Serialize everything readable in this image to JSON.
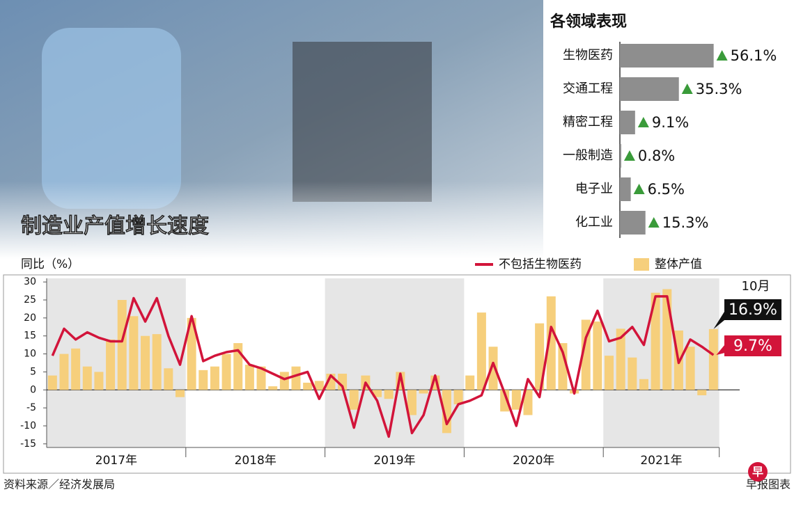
{
  "chart_data": [
    {
      "type": "hbar",
      "title": "各领域表现",
      "categories": [
        "生物医药",
        "交通工程",
        "精密工程",
        "一般制造",
        "电子业",
        "化工业"
      ],
      "values": [
        56.1,
        35.3,
        9.1,
        0.8,
        6.5,
        15.3
      ],
      "value_labels": [
        "56.1%",
        "35.3%",
        "9.1%",
        "0.8%",
        "6.5%",
        "15.3%"
      ],
      "color": "#8e8e8e",
      "xlim": [
        0,
        60
      ]
    },
    {
      "type": "combo",
      "title": "制造业产值增长速度",
      "ylabel": "同比（%）",
      "groups": [
        "2017年",
        "2018年",
        "2019年",
        "2020年",
        "2021年"
      ],
      "annotation": "10月",
      "ylim": [
        -16,
        31
      ],
      "yticks": [
        -15,
        -10,
        -5,
        0,
        5,
        10,
        15,
        20,
        25,
        30
      ],
      "series": [
        {
          "name": "不包括生物医药",
          "type": "line",
          "color": "#d2143a",
          "end_label": "9.7%",
          "values": [
            9.5,
            17,
            14,
            16,
            14.5,
            13.5,
            13.5,
            25.5,
            19,
            25.5,
            15,
            7,
            20.5,
            8,
            9.5,
            10.5,
            11,
            7,
            6,
            4.5,
            3,
            4,
            5,
            -2.5,
            4,
            1,
            -10.5,
            2,
            -3,
            -13,
            4.5,
            -12,
            -7,
            4,
            -9.5,
            -4,
            -3,
            -1.5,
            7.5,
            -1,
            -10,
            3,
            -2,
            17.5,
            10.5,
            -1,
            14.5,
            22,
            13.5,
            14.5,
            17.5,
            12.5,
            26,
            26,
            7.5,
            14,
            12,
            9.7
          ]
        },
        {
          "name": "整体产值",
          "type": "bar",
          "color": "#f6cf7c",
          "end_label": "16.9%",
          "values": [
            4,
            10,
            11.5,
            6.5,
            5,
            14,
            25,
            20.5,
            15,
            15.5,
            6,
            -2,
            20,
            5.5,
            6.5,
            10,
            13,
            7,
            6.5,
            1,
            5,
            6.5,
            2,
            2.5,
            4.5,
            4.5,
            -5.5,
            4,
            -2,
            -2.5,
            5,
            -7,
            -1,
            4,
            -12,
            -4,
            4,
            21.5,
            12,
            -6,
            -5.5,
            -7,
            18.5,
            26,
            13,
            -1,
            19.5,
            19,
            9.5,
            17,
            9,
            3,
            27,
            28,
            16.5,
            12,
            -1.5,
            16.9
          ]
        }
      ]
    }
  ],
  "source": "资料来源／经济发展局",
  "credit": "早报图表",
  "logo": "早"
}
